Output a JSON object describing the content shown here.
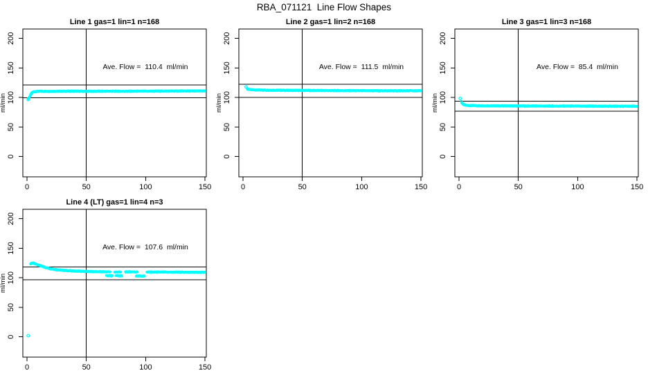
{
  "figure": {
    "title": "RBA_071121  Line Flow Shapes",
    "background_color": "#FFFFFF",
    "axis_color": "#000000",
    "point_color": "#00FFFF"
  },
  "chart_data": [
    {
      "type": "scatter",
      "title": "Line 1 gas=1 lin=1 n=168",
      "gas": 1,
      "lin": 1,
      "n": 168,
      "annotation": "Ave. Flow =  110.4  ml/min",
      "ave_flow_ml_min": 110.4,
      "xlabel": "",
      "ylabel": "ml/min",
      "xlim": [
        0,
        150
      ],
      "ylim": [
        0,
        200
      ],
      "x_ticks": [
        0,
        50,
        100,
        150
      ],
      "y_ticks": [
        0,
        50,
        100,
        150,
        200
      ],
      "vline_x": 50,
      "hlines_y": [
        121.4,
        99.4
      ],
      "series": [
        {
          "name": "flow",
          "marker": "open-circle",
          "color": "#00FFFF",
          "segments": [
            [
              [
                1,
                97.5
              ],
              [
                1.5,
                98.5
              ],
              [
                2,
                100.5
              ],
              [
                2.5,
                102.5
              ],
              [
                3,
                104.5
              ],
              [
                3.5,
                106
              ],
              [
                4,
                107.5
              ],
              [
                5,
                109
              ],
              [
                6,
                109.8
              ],
              [
                8,
                110.3
              ],
              [
                12,
                110.5
              ],
              [
                20,
                110.5
              ],
              [
                30,
                110.6
              ],
              [
                40,
                110.7
              ],
              [
                50,
                110.5
              ],
              [
                60,
                110.6
              ],
              [
                70,
                110.7
              ],
              [
                80,
                110.6
              ],
              [
                90,
                110.6
              ],
              [
                100,
                110.7
              ],
              [
                110,
                110.8
              ],
              [
                120,
                110.9
              ],
              [
                130,
                111.0
              ],
              [
                140,
                111.1
              ],
              [
                150,
                111.0
              ]
            ]
          ],
          "isolated_points": [
            [
              1,
              96.5
            ]
          ]
        }
      ]
    },
    {
      "type": "scatter",
      "title": "Line 2 gas=1 lin=2 n=168",
      "gas": 1,
      "lin": 2,
      "n": 168,
      "annotation": "Ave. Flow =  111.5  ml/min",
      "ave_flow_ml_min": 111.5,
      "xlabel": "",
      "ylabel": "ml/min",
      "xlim": [
        0,
        150
      ],
      "ylim": [
        0,
        200
      ],
      "x_ticks": [
        0,
        50,
        100,
        150
      ],
      "y_ticks": [
        0,
        50,
        100,
        150,
        200
      ],
      "vline_x": 50,
      "hlines_y": [
        122.7,
        100.4
      ],
      "series": [
        {
          "name": "flow",
          "marker": "open-circle",
          "color": "#00FFFF",
          "segments": [
            [
              [
                3.5,
                114.8
              ],
              [
                4,
                114.2
              ],
              [
                5,
                113.8
              ],
              [
                6,
                113.4
              ],
              [
                8,
                113.1
              ],
              [
                12,
                112.8
              ],
              [
                16,
                112.6
              ],
              [
                20,
                112.5
              ],
              [
                25,
                112.4
              ],
              [
                30,
                112.3
              ],
              [
                40,
                112.1
              ],
              [
                50,
                112.0
              ],
              [
                60,
                111.9
              ],
              [
                70,
                111.8
              ],
              [
                80,
                111.7
              ],
              [
                90,
                111.6
              ],
              [
                100,
                111.5
              ],
              [
                110,
                111.5
              ],
              [
                120,
                111.4
              ],
              [
                130,
                111.4
              ],
              [
                140,
                111.4
              ],
              [
                150,
                111.3
              ]
            ]
          ],
          "isolated_points": [
            [
              2.5,
              118
            ]
          ]
        }
      ]
    },
    {
      "type": "scatter",
      "title": "Line 3 gas=1 lin=3 n=168",
      "gas": 1,
      "lin": 3,
      "n": 168,
      "annotation": "Ave. Flow =  85.4  ml/min",
      "ave_flow_ml_min": 85.4,
      "xlabel": "",
      "ylabel": "ml/min",
      "xlim": [
        0,
        150
      ],
      "ylim": [
        0,
        200
      ],
      "x_ticks": [
        0,
        50,
        100,
        150
      ],
      "y_ticks": [
        0,
        50,
        100,
        150,
        200
      ],
      "vline_x": 50,
      "hlines_y": [
        93.9,
        76.9
      ],
      "series": [
        {
          "name": "flow",
          "marker": "open-circle",
          "color": "#00FFFF",
          "segments": [
            [
              [
                2,
                93
              ],
              [
                2.5,
                91
              ],
              [
                3,
                89.5
              ],
              [
                4,
                88
              ],
              [
                5,
                87.2
              ],
              [
                7,
                86.6
              ],
              [
                10,
                86.3
              ],
              [
                15,
                86.1
              ],
              [
                20,
                86.0
              ],
              [
                30,
                85.9
              ],
              [
                40,
                85.8
              ],
              [
                50,
                85.7
              ],
              [
                60,
                85.6
              ],
              [
                70,
                85.6
              ],
              [
                80,
                85.5
              ],
              [
                90,
                85.5
              ],
              [
                100,
                85.4
              ],
              [
                110,
                85.4
              ],
              [
                120,
                85.3
              ],
              [
                130,
                85.3
              ],
              [
                140,
                85.2
              ],
              [
                150,
                85.2
              ]
            ]
          ],
          "isolated_points": [
            [
              1,
              98.5
            ]
          ]
        }
      ]
    },
    {
      "type": "scatter",
      "title": "Line 4 (LT) gas=1 lin=4 n=3",
      "gas": 1,
      "lin": 4,
      "n": 3,
      "annotation": "Ave. Flow =  107.6  ml/min",
      "ave_flow_ml_min": 107.6,
      "xlabel": "",
      "ylabel": "ml/min",
      "xlim": [
        0,
        150
      ],
      "ylim": [
        0,
        200
      ],
      "x_ticks": [
        0,
        50,
        100,
        150
      ],
      "y_ticks": [
        0,
        50,
        100,
        150,
        200
      ],
      "vline_x": 50,
      "hlines_y": [
        118.4,
        96.8
      ],
      "series": [
        {
          "name": "flow",
          "marker": "open-circle",
          "color": "#00FFFF",
          "segments": [
            [
              [
                3,
                123
              ],
              [
                3.5,
                124.5
              ],
              [
                4,
                125
              ],
              [
                5,
                125
              ],
              [
                6,
                124.3
              ],
              [
                7,
                123.5
              ],
              [
                8,
                122.8
              ],
              [
                10,
                121.3
              ],
              [
                12,
                119.8
              ],
              [
                14,
                118.5
              ],
              [
                16,
                117.3
              ],
              [
                18,
                116.3
              ],
              [
                20,
                115.4
              ],
              [
                23,
                114.4
              ],
              [
                26,
                113.6
              ],
              [
                30,
                112.8
              ],
              [
                34,
                112.2
              ],
              [
                38,
                111.7
              ],
              [
                42,
                111.3
              ],
              [
                46,
                111.0
              ],
              [
                50,
                110.8
              ],
              [
                55,
                110.5
              ],
              [
                60,
                110.3
              ],
              [
                65,
                110.1
              ],
              [
                70,
                110.0
              ]
            ],
            [
              [
                74,
                109.8
              ],
              [
                79,
                109.7
              ]
            ],
            [
              [
                83,
                109.9
              ],
              [
                87,
                110.1
              ],
              [
                90,
                110.0
              ],
              [
                93,
                109.9
              ]
            ],
            [
              [
                101,
                109.7
              ],
              [
                108,
                109.6
              ],
              [
                115,
                109.6
              ],
              [
                122,
                109.5
              ],
              [
                130,
                109.5
              ],
              [
                138,
                109.4
              ],
              [
                145,
                109.3
              ],
              [
                150,
                109.3
              ]
            ],
            [
              [
                67,
                103.6
              ],
              [
                72,
                103.4
              ]
            ],
            [
              [
                75,
                103.4
              ],
              [
                80,
                103.2
              ]
            ],
            [
              [
                92,
                103.0
              ],
              [
                99,
                102.8
              ]
            ]
          ],
          "isolated_points": [
            [
              1,
              2
            ]
          ]
        }
      ]
    }
  ]
}
